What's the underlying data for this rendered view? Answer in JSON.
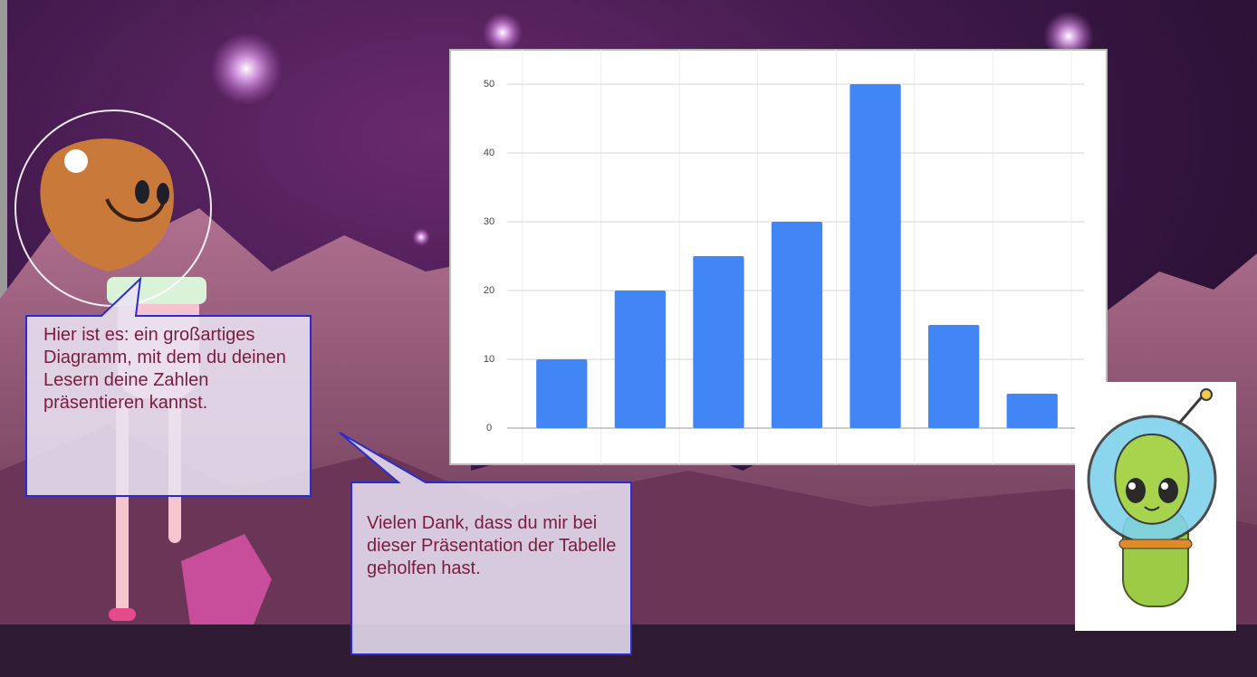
{
  "chart_data": {
    "type": "bar",
    "categories": [
      null,
      null,
      null,
      null,
      null,
      null,
      null
    ],
    "values": [
      10,
      20,
      25,
      30,
      50,
      15,
      5
    ],
    "color": "#4285f4",
    "ylim": [
      0,
      50
    ],
    "yticks": [
      0,
      10,
      20,
      30,
      40,
      50
    ],
    "grid": true
  },
  "callouts": [
    {
      "text": "Hier ist es: ein großartiges Diagramm, mit dem du deinen Lesern deine Zahlen präsentieren kannst."
    },
    {
      "text": "Vielen Dank, dass du mir bei dieser Präsentation der Tabelle geholfen hast."
    }
  ]
}
